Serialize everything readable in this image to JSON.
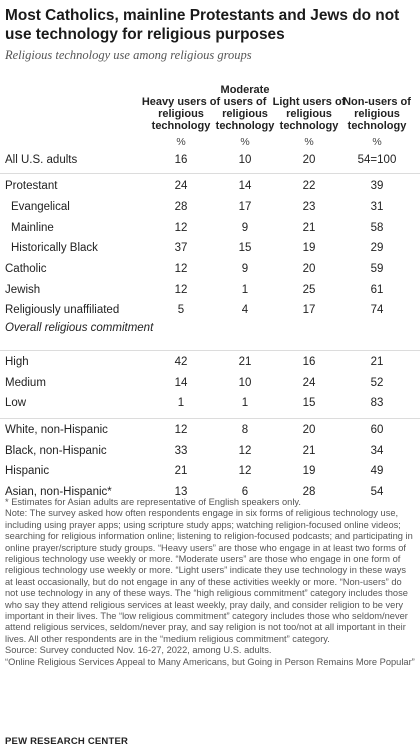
{
  "title": "Most Catholics, mainline Protestants and Jews do not use technology for religious purposes",
  "subtitle": "Religious technology use among religious groups",
  "chart_data": {
    "type": "table",
    "columns": [
      "Heavy users of religious technology",
      "Moderate users of religious technology",
      "Light users of religious technology",
      "Non-users of religious technology"
    ],
    "unit_row": [
      "%",
      "%",
      "%",
      "%"
    ],
    "rows": [
      {
        "label": "All U.S. adults",
        "values": [
          "16",
          "10",
          "20",
          "54=100"
        ]
      },
      {
        "label": "Protestant",
        "values": [
          "24",
          "14",
          "22",
          "39"
        ]
      },
      {
        "label": "Evangelical",
        "values": [
          "28",
          "17",
          "23",
          "31"
        ],
        "indent": true
      },
      {
        "label": "Mainline",
        "values": [
          "12",
          "9",
          "21",
          "58"
        ],
        "indent": true
      },
      {
        "label": "Historically Black",
        "values": [
          "37",
          "15",
          "19",
          "29"
        ],
        "indent": true
      },
      {
        "label": "Catholic",
        "values": [
          "12",
          "9",
          "20",
          "59"
        ]
      },
      {
        "label": "Jewish",
        "values": [
          "12",
          "1",
          "25",
          "61"
        ]
      },
      {
        "label": "Religiously unaffiliated",
        "values": [
          "5",
          "4",
          "17",
          "74"
        ]
      },
      {
        "label": "High",
        "values": [
          "42",
          "21",
          "16",
          "21"
        ]
      },
      {
        "label": "Medium",
        "values": [
          "14",
          "10",
          "24",
          "52"
        ]
      },
      {
        "label": "Low",
        "values": [
          "1",
          "1",
          "15",
          "83"
        ]
      },
      {
        "label": "White, non-Hispanic",
        "values": [
          "12",
          "8",
          "20",
          "60"
        ]
      },
      {
        "label": "Black, non-Hispanic",
        "values": [
          "33",
          "12",
          "21",
          "34"
        ]
      },
      {
        "label": "Hispanic",
        "values": [
          "21",
          "12",
          "19",
          "49"
        ]
      },
      {
        "label": "Asian, non-Hispanic*",
        "values": [
          "13",
          "6",
          "28",
          "54"
        ]
      }
    ],
    "section_label": "Overall religious commitment"
  },
  "notes": [
    "* Estimates for Asian adults are representative of English speakers only.",
    "Note: The survey asked how often respondents engage in six forms of religious technology use, including using prayer apps; using scripture study apps; watching religion-focused online videos; searching for religious information online; listening to religion-focused podcasts; and participating in online prayer/scripture study groups. “Heavy users” are those who engage in at least two forms of religious technology use weekly or more. “Moderate users” are those who engage in one form of religious technology use weekly or more. “Light users” indicate they use technology in these ways at least occasionally, but do not engage in any of these activities weekly or more. “Non-users” do not use technology in any of these ways. The “high religious commitment” category includes those who say they attend religious services at least weekly, pray daily, and consider religion to be very important in their lives. The “low religious commitment” category includes those who seldom/never attend religious services, seldom/never pray, and say religion is not too/not at all important in their lives. All other respondents are in the “medium religious commitment” category.",
    "Source: Survey conducted Nov. 16-27, 2022, among U.S. adults.",
    "“Online Religious Services Appeal to Many Americans, but Going in Person Remains More Popular”"
  ],
  "footer": "PEW RESEARCH CENTER"
}
